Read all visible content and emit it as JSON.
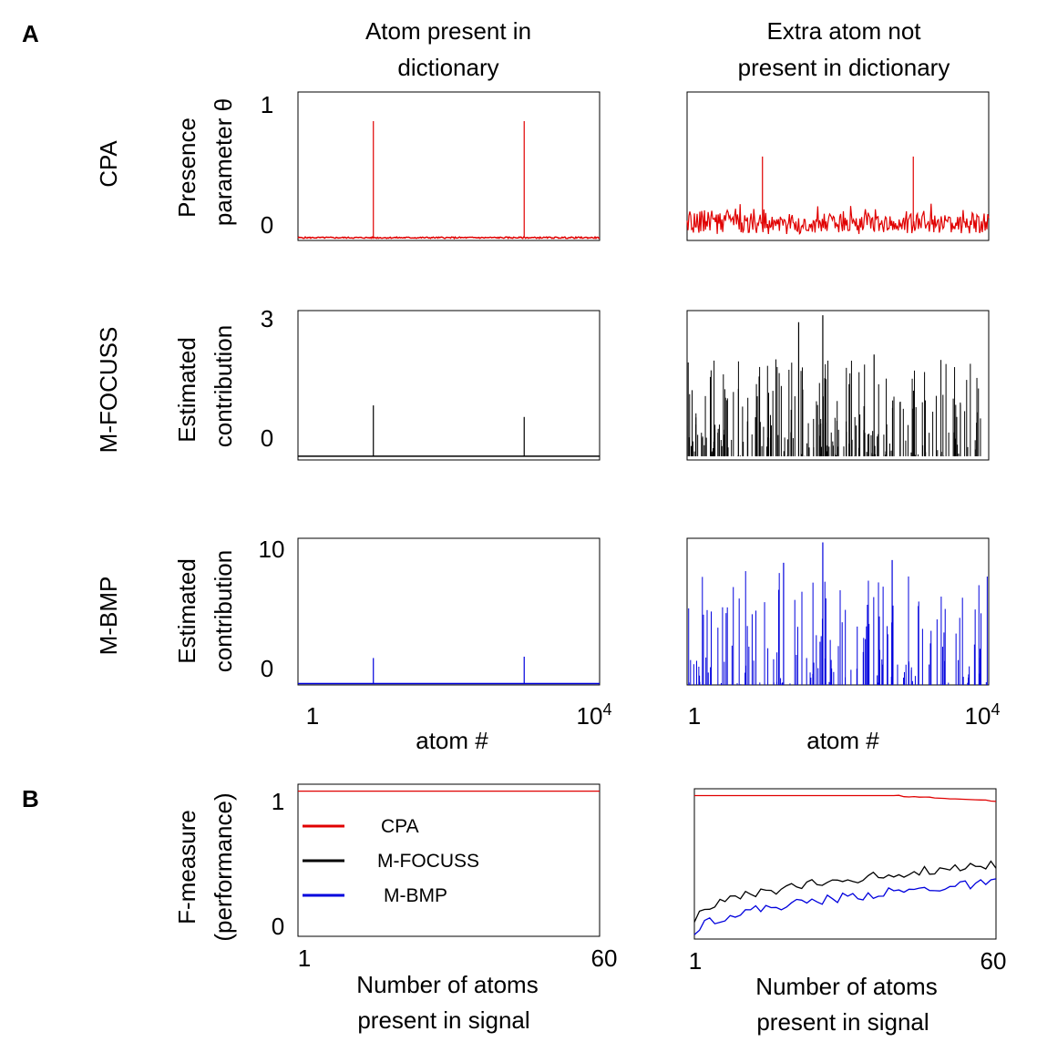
{
  "panels": {
    "a": "A",
    "b": "B"
  },
  "columns": {
    "left": [
      "Atom present in",
      "dictionary"
    ],
    "right": [
      "Extra atom not",
      "present in dictionary"
    ]
  },
  "rows": {
    "cpa": {
      "label": "CPA",
      "ylabel": [
        "Presence",
        "parameter θ"
      ]
    },
    "mfocuss": {
      "label": "M-FOCUSS",
      "ylabel": [
        "Estimated",
        "contribution"
      ]
    },
    "mbmp": {
      "label": "M-BMP",
      "ylabel": [
        "Estimated",
        "contribution"
      ]
    }
  },
  "xaxis_a": {
    "label": "atom #",
    "tick_min": "1",
    "tick_max_base": "10",
    "tick_max_exp": "4"
  },
  "panel_b": {
    "ylabel": [
      "F-measure",
      "(performance)"
    ],
    "xlabel": [
      "Number of atoms",
      "present in signal"
    ],
    "tick_x_min": "1",
    "tick_x_max": "60",
    "tick_y_min": "0",
    "tick_y_max": "1"
  },
  "legend": [
    {
      "name": "CPA",
      "color": "#e00000"
    },
    {
      "name": "M-FOCUSS",
      "color": "#000000"
    },
    {
      "name": "M-BMP",
      "color": "#0000dd"
    }
  ],
  "chart_data": [
    {
      "type": "bar",
      "id": "cpa-present",
      "color": "#e00000",
      "xlim": [
        1,
        10000
      ],
      "ylim": [
        -0.02,
        1.05
      ],
      "ticks_y": [
        "0",
        "1"
      ],
      "spikes": [
        {
          "x": 2500,
          "y": 0.84
        },
        {
          "x": 7500,
          "y": 0.84
        }
      ],
      "baseline": 0.0,
      "noise": 0.005
    },
    {
      "type": "bar",
      "id": "cpa-extra",
      "color": "#e00000",
      "xlim": [
        1,
        10000
      ],
      "ylim": [
        -0.1,
        1.05
      ],
      "spikes": [
        {
          "x": 2500,
          "y": 0.55
        },
        {
          "x": 7500,
          "y": 0.55
        }
      ],
      "baseline": 0.03,
      "noise": 0.08
    },
    {
      "type": "bar",
      "id": "mfocuss-present",
      "color": "#000000",
      "xlim": [
        1,
        10000
      ],
      "ylim": [
        -0.08,
        3.15
      ],
      "ticks_y": [
        "3",
        "0"
      ],
      "spikes": [
        {
          "x": 2500,
          "y": 1.1
        },
        {
          "x": 7500,
          "y": 0.85
        }
      ],
      "baseline": 0.0,
      "noise": 0.0
    },
    {
      "type": "bar",
      "id": "mfocuss-extra",
      "color": "#000000",
      "xlim": [
        1,
        10000
      ],
      "ylim": [
        -0.08,
        3.15
      ],
      "random_spikes": {
        "count": 240,
        "max": 2.1,
        "seed": 7
      },
      "spikes": [
        {
          "x": 3700,
          "y": 2.9
        },
        {
          "x": 4500,
          "y": 3.05
        },
        {
          "x": 6200,
          "y": 2.2
        }
      ]
    },
    {
      "type": "bar",
      "id": "mbmp-present",
      "color": "#0000dd",
      "xlim": [
        1,
        10000
      ],
      "ylim": [
        -0.1,
        10.8
      ],
      "ticks_y": [
        "10",
        "0"
      ],
      "spikes": [
        {
          "x": 2500,
          "y": 1.9
        },
        {
          "x": 7500,
          "y": 2.0
        }
      ],
      "baseline": 0.0,
      "noise": 0.0
    },
    {
      "type": "bar",
      "id": "mbmp-extra",
      "color": "#0000dd",
      "xlim": [
        1,
        10000
      ],
      "ylim": [
        0,
        10.8
      ],
      "random_spikes": {
        "count": 150,
        "max": 8.5,
        "seed": 11
      },
      "spikes": [
        {
          "x": 4500,
          "y": 10.5
        },
        {
          "x": 3200,
          "y": 9.0
        },
        {
          "x": 6800,
          "y": 9.2
        }
      ]
    },
    {
      "type": "line",
      "id": "f-present",
      "xlim": [
        1,
        60
      ],
      "ylim": [
        -0.05,
        1.05
      ],
      "series": [
        {
          "name": "CPA",
          "color": "#e00000",
          "values": "const:1.0"
        }
      ]
    },
    {
      "type": "line",
      "id": "f-extra",
      "xlim": [
        1,
        60
      ],
      "ylim": [
        -0.05,
        1.05
      ],
      "series": [
        {
          "name": "CPA",
          "color": "#e00000",
          "start": 1.0,
          "end": 0.96
        },
        {
          "name": "M-FOCUSS",
          "color": "#000000",
          "start": 0.1,
          "end": 0.5
        },
        {
          "name": "M-BMP",
          "color": "#0000dd",
          "start": 0.0,
          "end": 0.36
        }
      ]
    }
  ]
}
